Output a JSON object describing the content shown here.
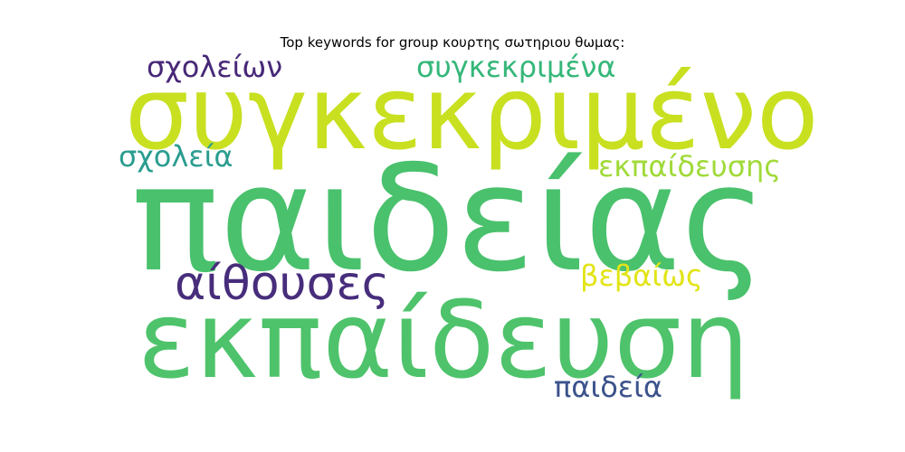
{
  "title": "Top keywords for group κουρτης σωτηριου θωμας:",
  "words": [
    {
      "text": "σχολείων",
      "color": "#482878"
    },
    {
      "text": "συγκεκριμένα",
      "color": "#35b779"
    },
    {
      "text": "συγκεκριμένο",
      "color": "#c8e020"
    },
    {
      "text": "σχολεία",
      "color": "#2a9d8f"
    },
    {
      "text": "εκπαίδευσης",
      "color": "#a0da39"
    },
    {
      "text": "παιδείας",
      "color": "#4ac16d"
    },
    {
      "text": "αίθουσες",
      "color": "#472d7b"
    },
    {
      "text": "βεβαίως",
      "color": "#e2e418"
    },
    {
      "text": "εκπαίδευση",
      "color": "#4ec36b"
    },
    {
      "text": "παιδεία",
      "color": "#3b528b"
    }
  ]
}
